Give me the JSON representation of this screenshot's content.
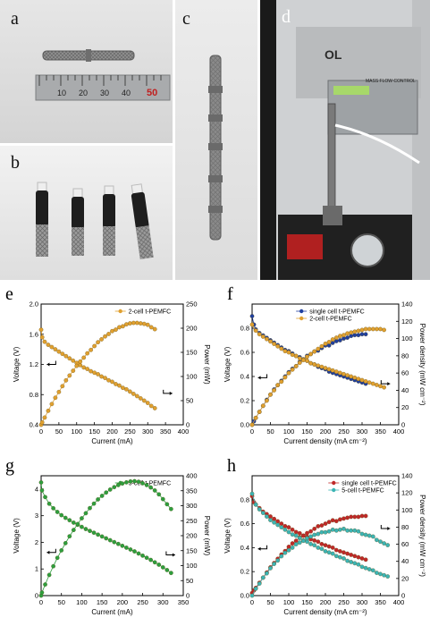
{
  "panels": {
    "a": "a",
    "b": "b",
    "c": "c",
    "d": "d",
    "e": "e",
    "f": "f",
    "g": "g",
    "h": "h"
  },
  "ruler": {
    "numbers": [
      "10",
      "20",
      "30",
      "40",
      "50"
    ]
  },
  "equipment": {
    "brand": "OL",
    "controller_label": "MASS FLOW CONTROL"
  },
  "colors": {
    "orange": "#E0A030",
    "blue": "#1F3F9F",
    "green": "#2E9E3E",
    "red": "#C02828",
    "teal": "#3CB4B4"
  },
  "chart_data": [
    {
      "id": "e",
      "type": "line",
      "xlabel": "Current (mA)",
      "ylabel": "Voltage (V)",
      "y2label": "Power (mW)",
      "xlim": [
        0,
        400
      ],
      "ylim": [
        0.4,
        2.0
      ],
      "y2lim": [
        0,
        250
      ],
      "xticks": [
        "0",
        "50",
        "100",
        "150",
        "200",
        "250",
        "300",
        "350",
        "400"
      ],
      "yticks": [
        "0.4",
        "0.8",
        "1.2",
        "1.6",
        "2.0"
      ],
      "y2ticks": [
        "0",
        "50",
        "100",
        "150",
        "200",
        "250"
      ],
      "legend_position": "top-right",
      "series": [
        {
          "name": "2-cell t-PEMFC",
          "color": "#E0A030",
          "axis": "left",
          "legend": true,
          "x": [
            0,
            3,
            10,
            20,
            30,
            40,
            50,
            60,
            70,
            80,
            90,
            100,
            110,
            120,
            130,
            140,
            150,
            160,
            170,
            180,
            190,
            200,
            210,
            220,
            230,
            240,
            250,
            260,
            270,
            280,
            290,
            300,
            310,
            320
          ],
          "y": [
            1.66,
            1.56,
            1.5,
            1.46,
            1.43,
            1.4,
            1.37,
            1.34,
            1.31,
            1.28,
            1.25,
            1.22,
            1.19,
            1.16,
            1.14,
            1.11,
            1.09,
            1.07,
            1.04,
            1.02,
            0.99,
            0.97,
            0.94,
            0.92,
            0.89,
            0.87,
            0.84,
            0.81,
            0.78,
            0.75,
            0.72,
            0.69,
            0.65,
            0.62
          ]
        },
        {
          "name": "",
          "color": "#E0A030",
          "axis": "right",
          "legend": false,
          "x": [
            0,
            3,
            10,
            20,
            30,
            40,
            50,
            60,
            70,
            80,
            90,
            100,
            110,
            120,
            130,
            140,
            150,
            160,
            170,
            180,
            190,
            200,
            210,
            220,
            230,
            240,
            250,
            260,
            270,
            280,
            290,
            300,
            310,
            320
          ],
          "y": [
            0,
            5,
            15,
            29,
            43,
            56,
            68,
            80,
            92,
            102,
            112,
            122,
            131,
            139,
            148,
            155,
            163,
            171,
            177,
            183,
            188,
            194,
            197,
            202,
            204,
            208,
            210,
            211,
            211,
            210,
            209,
            207,
            202,
            198
          ]
        }
      ]
    },
    {
      "id": "f",
      "type": "line",
      "xlabel": "Current density (mA cm⁻²)",
      "ylabel": "Voltage (V)",
      "y2label": "Power density (mW cm⁻²)",
      "xlim": [
        0,
        400
      ],
      "ylim": [
        0.0,
        1.0
      ],
      "y2lim": [
        0,
        140
      ],
      "xticks": [
        "0",
        "50",
        "100",
        "150",
        "200",
        "250",
        "300",
        "350",
        "400"
      ],
      "yticks": [
        "0.0",
        "0.2",
        "0.4",
        "0.6",
        "0.8"
      ],
      "y2ticks": [
        "0",
        "20",
        "40",
        "60",
        "80",
        "100",
        "120",
        "140"
      ],
      "legend_position": "top-center",
      "series": [
        {
          "name": "single cell t-PEMFC",
          "color": "#1F3F9F",
          "axis": "left",
          "legend": true,
          "x": [
            0,
            5,
            10,
            20,
            30,
            40,
            50,
            60,
            70,
            80,
            90,
            100,
            110,
            120,
            130,
            140,
            150,
            160,
            170,
            180,
            190,
            200,
            210,
            220,
            230,
            240,
            250,
            260,
            270,
            280,
            290,
            300,
            310
          ],
          "y": [
            0.9,
            0.83,
            0.79,
            0.76,
            0.74,
            0.72,
            0.7,
            0.68,
            0.66,
            0.64,
            0.62,
            0.61,
            0.59,
            0.57,
            0.56,
            0.54,
            0.53,
            0.51,
            0.5,
            0.48,
            0.47,
            0.46,
            0.44,
            0.43,
            0.42,
            0.41,
            0.4,
            0.39,
            0.38,
            0.37,
            0.36,
            0.35,
            0.34
          ]
        },
        {
          "name": "",
          "color": "#1F3F9F",
          "axis": "right",
          "legend": false,
          "x": [
            0,
            5,
            10,
            20,
            30,
            40,
            50,
            60,
            70,
            80,
            90,
            100,
            110,
            120,
            130,
            140,
            150,
            160,
            170,
            180,
            190,
            200,
            210,
            220,
            230,
            240,
            250,
            260,
            270,
            280,
            290,
            300,
            310
          ],
          "y": [
            0,
            4,
            8,
            15,
            22,
            29,
            35,
            41,
            46,
            51,
            56,
            61,
            65,
            68,
            73,
            76,
            80,
            82,
            85,
            86,
            89,
            92,
            92,
            95,
            97,
            98,
            100,
            101,
            103,
            104,
            104,
            105,
            105
          ]
        },
        {
          "name": "2-cell t-PEMFC",
          "color": "#E0A030",
          "axis": "left",
          "legend": true,
          "x": [
            0,
            10,
            20,
            30,
            40,
            50,
            60,
            70,
            80,
            90,
            100,
            110,
            120,
            130,
            140,
            150,
            160,
            170,
            180,
            190,
            200,
            210,
            220,
            230,
            240,
            250,
            260,
            270,
            280,
            290,
            300,
            310,
            320,
            330,
            340,
            350,
            360
          ],
          "y": [
            0.83,
            0.78,
            0.75,
            0.73,
            0.71,
            0.69,
            0.67,
            0.65,
            0.63,
            0.61,
            0.6,
            0.58,
            0.57,
            0.55,
            0.54,
            0.53,
            0.51,
            0.5,
            0.49,
            0.48,
            0.47,
            0.46,
            0.45,
            0.44,
            0.43,
            0.42,
            0.41,
            0.4,
            0.39,
            0.38,
            0.37,
            0.36,
            0.35,
            0.34,
            0.33,
            0.32,
            0.31
          ]
        },
        {
          "name": "",
          "color": "#E0A030",
          "axis": "right",
          "legend": false,
          "x": [
            0,
            10,
            20,
            30,
            40,
            50,
            60,
            70,
            80,
            90,
            100,
            110,
            120,
            130,
            140,
            150,
            160,
            170,
            180,
            190,
            200,
            210,
            220,
            230,
            240,
            250,
            260,
            270,
            280,
            290,
            300,
            310,
            320,
            330,
            340,
            350,
            360
          ],
          "y": [
            0,
            8,
            15,
            22,
            28,
            35,
            40,
            46,
            50,
            55,
            60,
            64,
            68,
            72,
            75,
            79,
            82,
            85,
            88,
            91,
            94,
            96,
            99,
            101,
            103,
            104,
            106,
            107,
            108,
            109,
            110,
            111,
            111,
            111,
            111,
            111,
            110
          ]
        }
      ]
    },
    {
      "id": "g",
      "type": "line",
      "xlabel": "Current (mA)",
      "ylabel": "Voltage (V)",
      "y2label": "Power (mW)",
      "xlim": [
        0,
        350
      ],
      "ylim": [
        0,
        4.5
      ],
      "y2lim": [
        0,
        400
      ],
      "xticks": [
        "0",
        "50",
        "100",
        "150",
        "200",
        "250",
        "300",
        "350"
      ],
      "yticks": [
        "0",
        "1",
        "2",
        "3",
        "4"
      ],
      "y2ticks": [
        "0",
        "50",
        "100",
        "150",
        "200",
        "250",
        "300",
        "350",
        "400"
      ],
      "legend_position": "top-right",
      "series": [
        {
          "name": "5-cell t-PEMFC",
          "color": "#2E9E3E",
          "axis": "left",
          "legend": true,
          "x": [
            0,
            2,
            10,
            20,
            30,
            40,
            50,
            60,
            70,
            80,
            90,
            100,
            110,
            120,
            130,
            140,
            150,
            160,
            170,
            180,
            190,
            200,
            210,
            220,
            230,
            240,
            250,
            260,
            270,
            280,
            290,
            300,
            310,
            320
          ],
          "y": [
            4.25,
            3.95,
            3.7,
            3.45,
            3.28,
            3.14,
            3.02,
            2.92,
            2.83,
            2.74,
            2.66,
            2.58,
            2.5,
            2.43,
            2.36,
            2.29,
            2.22,
            2.15,
            2.08,
            2.01,
            1.94,
            1.87,
            1.8,
            1.73,
            1.66,
            1.58,
            1.5,
            1.42,
            1.34,
            1.25,
            1.16,
            1.06,
            0.96,
            0.85
          ]
        },
        {
          "name": "",
          "color": "#2E9E3E",
          "axis": "right",
          "legend": false,
          "x": [
            0,
            2,
            10,
            20,
            30,
            40,
            50,
            60,
            70,
            80,
            90,
            100,
            110,
            120,
            130,
            140,
            150,
            160,
            170,
            180,
            190,
            200,
            210,
            220,
            230,
            240,
            250,
            260,
            270,
            280,
            290,
            300,
            310,
            320
          ],
          "y": [
            0,
            10,
            37,
            69,
            98,
            126,
            151,
            175,
            198,
            219,
            239,
            258,
            275,
            292,
            307,
            321,
            333,
            344,
            354,
            362,
            369,
            374,
            378,
            381,
            382,
            380,
            375,
            369,
            361,
            351,
            338,
            322,
            305,
            289
          ]
        }
      ]
    },
    {
      "id": "h",
      "type": "line",
      "xlabel": "Current density (mA cm⁻²)",
      "ylabel": "Voltage (V)",
      "y2label": "Power density (mW cm⁻²)",
      "xlim": [
        0,
        400
      ],
      "ylim": [
        0.0,
        1.0
      ],
      "y2lim": [
        0,
        140
      ],
      "xticks": [
        "0",
        "50",
        "100",
        "150",
        "200",
        "250",
        "300",
        "350",
        "400"
      ],
      "yticks": [
        "0.0",
        "0.2",
        "0.4",
        "0.6",
        "0.8"
      ],
      "y2ticks": [
        "0",
        "20",
        "40",
        "60",
        "80",
        "100",
        "120",
        "140"
      ],
      "legend_position": "top-right",
      "series": [
        {
          "name": "single cell t-PEMFC",
          "color": "#C02828",
          "axis": "left",
          "legend": true,
          "x": [
            0,
            5,
            10,
            20,
            30,
            40,
            50,
            60,
            70,
            80,
            90,
            100,
            110,
            120,
            130,
            140,
            150,
            160,
            170,
            180,
            190,
            200,
            210,
            220,
            230,
            240,
            250,
            260,
            270,
            280,
            290,
            300,
            310
          ],
          "y": [
            0.83,
            0.78,
            0.76,
            0.73,
            0.7,
            0.68,
            0.66,
            0.64,
            0.62,
            0.6,
            0.58,
            0.57,
            0.55,
            0.53,
            0.52,
            0.5,
            0.49,
            0.47,
            0.46,
            0.45,
            0.43,
            0.42,
            0.41,
            0.4,
            0.38,
            0.37,
            0.36,
            0.35,
            0.34,
            0.33,
            0.32,
            0.31,
            0.3
          ]
        },
        {
          "name": "",
          "color": "#C02828",
          "axis": "right",
          "legend": false,
          "x": [
            0,
            5,
            10,
            20,
            30,
            40,
            50,
            60,
            70,
            80,
            90,
            100,
            110,
            120,
            130,
            140,
            150,
            160,
            170,
            180,
            190,
            200,
            210,
            220,
            230,
            240,
            250,
            260,
            270,
            280,
            290,
            300,
            310
          ],
          "y": [
            3,
            6,
            9,
            15,
            21,
            27,
            33,
            38,
            43,
            48,
            52,
            57,
            61,
            64,
            68,
            70,
            73,
            75,
            78,
            81,
            82,
            84,
            86,
            88,
            87,
            89,
            90,
            91,
            92,
            92,
            92,
            93,
            93
          ]
        },
        {
          "name": "5-cell t-PEMFC",
          "color": "#3CB4B4",
          "axis": "left",
          "legend": true,
          "x": [
            0,
            10,
            20,
            30,
            40,
            50,
            60,
            70,
            80,
            90,
            100,
            110,
            120,
            130,
            140,
            150,
            160,
            170,
            180,
            190,
            200,
            210,
            220,
            230,
            240,
            250,
            260,
            270,
            280,
            290,
            300,
            310,
            320,
            330,
            340,
            350,
            360,
            370
          ],
          "y": [
            0.85,
            0.76,
            0.72,
            0.69,
            0.66,
            0.63,
            0.61,
            0.59,
            0.57,
            0.55,
            0.53,
            0.51,
            0.5,
            0.48,
            0.46,
            0.45,
            0.43,
            0.42,
            0.4,
            0.39,
            0.37,
            0.36,
            0.35,
            0.33,
            0.32,
            0.31,
            0.29,
            0.28,
            0.27,
            0.26,
            0.24,
            0.23,
            0.22,
            0.21,
            0.19,
            0.18,
            0.17,
            0.16
          ]
        },
        {
          "name": "",
          "color": "#3CB4B4",
          "axis": "right",
          "legend": false,
          "x": [
            0,
            10,
            20,
            30,
            40,
            50,
            60,
            70,
            80,
            90,
            100,
            110,
            120,
            130,
            140,
            150,
            160,
            170,
            180,
            190,
            200,
            210,
            220,
            230,
            240,
            250,
            260,
            270,
            280,
            290,
            300,
            310,
            320,
            330,
            340,
            350,
            360,
            370
          ],
          "y": [
            0,
            8,
            14,
            21,
            26,
            32,
            37,
            41,
            46,
            50,
            53,
            56,
            60,
            62,
            64,
            67,
            69,
            71,
            72,
            74,
            74,
            75,
            77,
            76,
            77,
            78,
            76,
            76,
            76,
            75,
            72,
            71,
            70,
            69,
            65,
            63,
            61,
            59
          ]
        }
      ]
    }
  ]
}
